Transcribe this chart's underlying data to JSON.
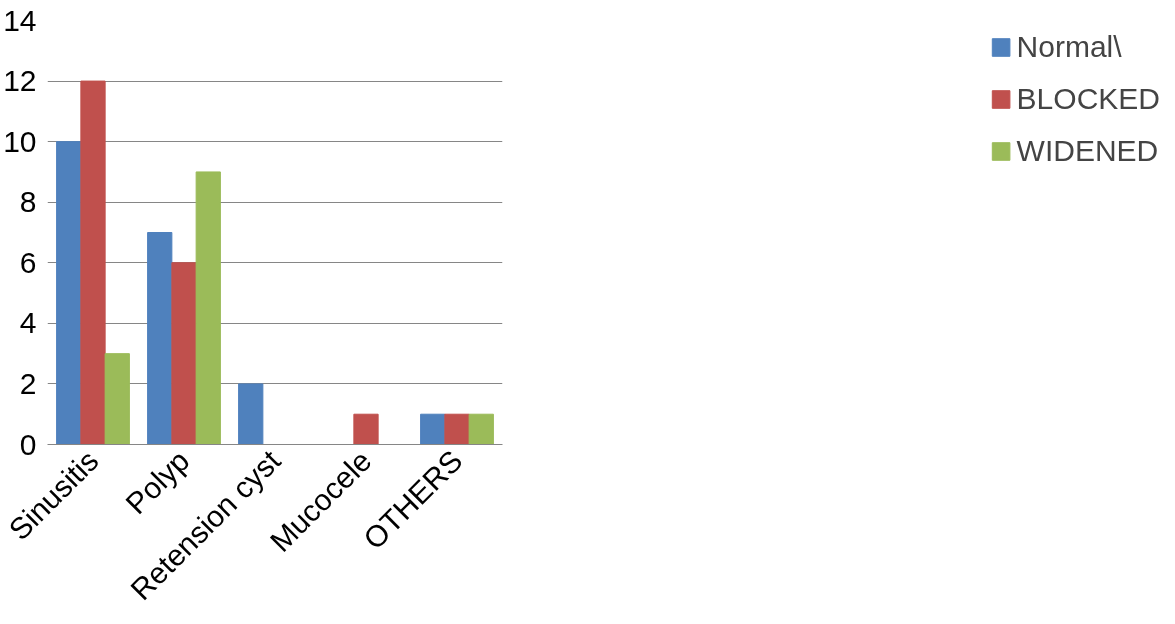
{
  "chart_data": {
    "type": "bar",
    "categories": [
      "Sinusitis",
      "Polyp",
      "Retension cyst",
      "Mucocele",
      "OTHERS"
    ],
    "series": [
      {
        "name": "Normal\\",
        "color": "#4f81bd",
        "values": [
          10,
          7,
          2,
          0,
          1
        ]
      },
      {
        "name": "BLOCKED",
        "color": "#c0504d",
        "values": [
          12,
          6,
          0,
          1,
          1
        ]
      },
      {
        "name": "WIDENED",
        "color": "#9bbb59",
        "values": [
          3,
          9,
          0,
          0,
          1
        ]
      }
    ],
    "ylim": [
      0,
      14
    ],
    "yticks": [
      0,
      2,
      4,
      6,
      8,
      10,
      12,
      14
    ],
    "grid": "y",
    "legend": "right"
  }
}
